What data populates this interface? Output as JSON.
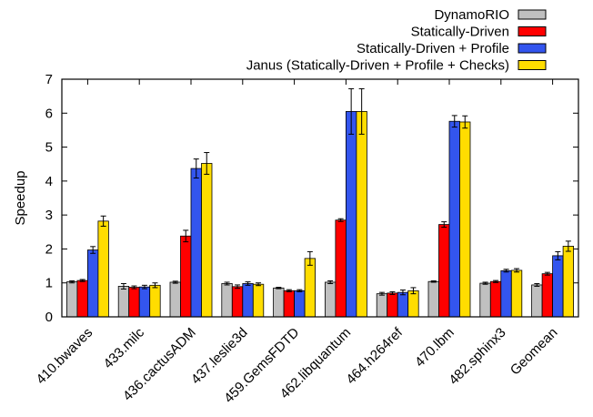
{
  "chart_data": {
    "type": "bar",
    "title": "",
    "xlabel": "",
    "ylabel": "Speedup",
    "ylim": [
      0,
      7
    ],
    "yticks": [
      0,
      1,
      2,
      3,
      4,
      5,
      6,
      7
    ],
    "grid": false,
    "legend_position": "top-right",
    "categories": [
      "410.bwaves",
      "433.milc",
      "436.cactusADM",
      "437.leslie3d",
      "459.GemsFDTD",
      "462.libquantum",
      "464.h264ref",
      "470.lbm",
      "482.sphinx3",
      "Geomean"
    ],
    "series": [
      {
        "name": "DynamoRIO",
        "color": "#c0c0c0",
        "values": [
          1.03,
          0.9,
          1.02,
          0.98,
          0.85,
          1.02,
          0.68,
          1.04,
          0.99,
          0.94
        ],
        "errors": [
          0.03,
          0.08,
          0.03,
          0.04,
          0.02,
          0.04,
          0.04,
          0.02,
          0.03,
          0.04
        ]
      },
      {
        "name": "Statically-Driven",
        "color": "#ff0000",
        "values": [
          1.07,
          0.87,
          2.38,
          0.89,
          0.77,
          2.85,
          0.7,
          2.72,
          1.04,
          1.27
        ],
        "errors": [
          0.03,
          0.04,
          0.17,
          0.05,
          0.03,
          0.04,
          0.04,
          0.08,
          0.03,
          0.04
        ]
      },
      {
        "name": "Statically-Driven + Profile",
        "color": "#3355ee",
        "values": [
          1.97,
          0.88,
          4.37,
          0.98,
          0.77,
          6.05,
          0.72,
          5.76,
          1.36,
          1.8
        ],
        "errors": [
          0.1,
          0.05,
          0.28,
          0.05,
          0.03,
          0.67,
          0.07,
          0.17,
          0.04,
          0.12
        ]
      },
      {
        "name": "Janus (Statically-Driven + Profile + Checks)",
        "color": "#ffdd00",
        "values": [
          2.82,
          0.93,
          4.52,
          0.96,
          1.72,
          6.05,
          0.77,
          5.74,
          1.37,
          2.08
        ],
        "errors": [
          0.15,
          0.07,
          0.32,
          0.04,
          0.2,
          0.67,
          0.09,
          0.18,
          0.05,
          0.15
        ]
      }
    ]
  }
}
